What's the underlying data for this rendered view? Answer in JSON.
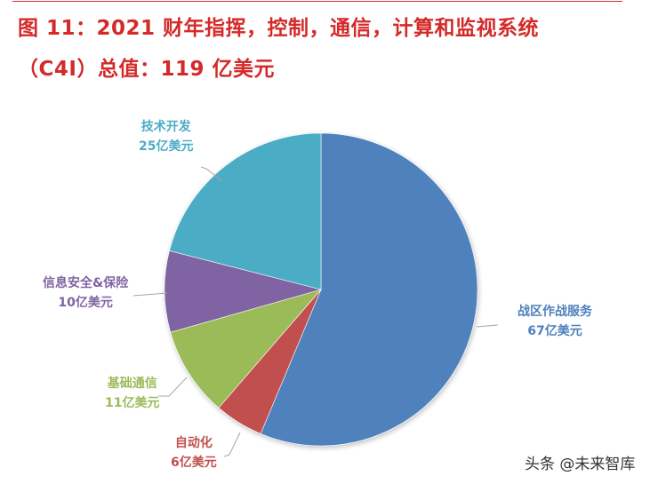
{
  "title": {
    "line1": "图 11：2021 财年指挥，控制，通信，计算和监视系统",
    "line2": "（C4I）总值：119 亿美元"
  },
  "chart_data": {
    "type": "pie",
    "title": "2021财年指挥，控制，通信，计算和监视系统（C4I）总值：119亿美元",
    "unit": "亿美元",
    "total": 119,
    "start_angle": "12 o'clock",
    "direction": "clockwise",
    "slices": [
      {
        "name": "战区作战服务",
        "value": 67,
        "color": "#4f81bd"
      },
      {
        "name": "自动化",
        "value": 6,
        "color": "#c0504d"
      },
      {
        "name": "基础通信",
        "value": 11,
        "color": "#9bbb59"
      },
      {
        "name": "信息安全&保险",
        "value": 10,
        "color": "#8064a2"
      },
      {
        "name": "技术开发",
        "value": 25,
        "color": "#4bacc6"
      }
    ]
  },
  "labels": {
    "theater": {
      "name": "战区作战服务",
      "value": "67亿美元"
    },
    "automation": {
      "name": "自动化",
      "value": "6亿美元"
    },
    "comms": {
      "name": "基础通信",
      "value": "11亿美元"
    },
    "infosec": {
      "name": "信息安全&保险",
      "value": "10亿美元"
    },
    "tech": {
      "name": "技术开发",
      "value": "25亿美元"
    }
  },
  "watermark": "头条 @未来智库"
}
